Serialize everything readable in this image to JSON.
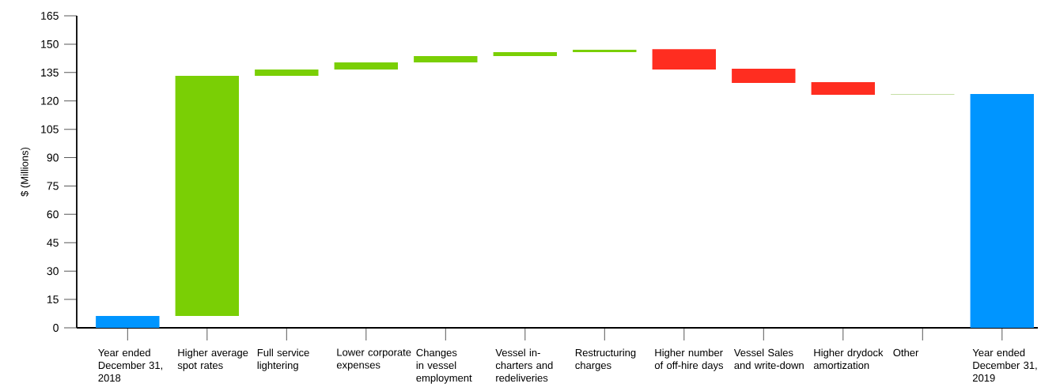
{
  "chart_data": {
    "type": "bar",
    "ylabel": "$ (Millions)",
    "categories": [
      "Year ended December 31, 2018",
      "Higher average spot rates",
      "Full service lightering",
      "Lower corporate expenses",
      "Changes in vessel employment",
      "Vessel in-charters and redeliveries",
      "Restructuring charges",
      "Higher number of off-hire days",
      "Vessel Sales and write-down",
      "Higher drydock amortization",
      "Other",
      "Year ended December 31, 2019"
    ],
    "base": [
      0,
      6.3,
      133.2,
      136.6,
      140.3,
      143.7,
      145.8,
      147.4,
      137.0,
      129.9,
      123.4,
      0
    ],
    "values": [
      6.3,
      126.9,
      3.4,
      3.7,
      3.4,
      2.1,
      1.2,
      -10.8,
      -7.5,
      -6.7,
      0.2,
      123.6
    ],
    "colors": [
      "#0095ff",
      "#7acf05",
      "#7acf05",
      "#7acf05",
      "#7acf05",
      "#7acf05",
      "#7acf05",
      "#ff2d20",
      "#ff2d20",
      "#ff2d20",
      "#8cbf4a",
      "#0095ff"
    ],
    "ylim": [
      0,
      165
    ],
    "yticks": [
      0,
      15,
      30,
      45,
      60,
      75,
      90,
      105,
      120,
      135,
      150,
      165
    ]
  }
}
